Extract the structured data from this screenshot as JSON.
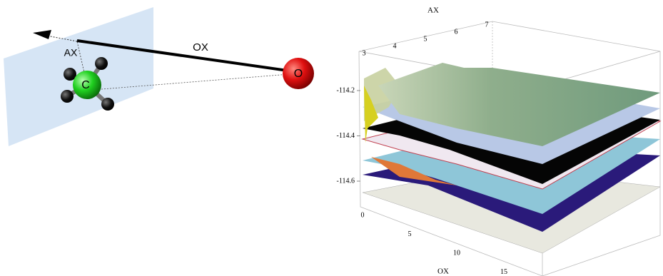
{
  "molecule": {
    "carbon": "C",
    "oxygen": "O",
    "ax_label": "AX",
    "ox_label": "OX"
  },
  "plot": {
    "ax_title": "AX",
    "ox_title": "OX",
    "ax_ticks": [
      3,
      4,
      5,
      6,
      7
    ],
    "energy_ticks": [
      -114.2,
      -114.4,
      -114.6
    ],
    "ox_ticks": [
      0,
      5,
      10,
      15
    ]
  }
}
